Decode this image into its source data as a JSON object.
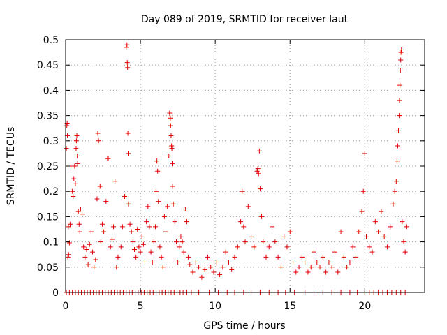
{
  "chart_data": {
    "type": "scatter",
    "title": "Day 089 of 2019, SRMTID for receiver laut",
    "xlabel": "GPS time / hours",
    "ylabel": "SRMTID / TECUs",
    "xlim": [
      0,
      24
    ],
    "ylim": [
      0,
      0.5
    ],
    "xticks": [
      0,
      5,
      10,
      15,
      20
    ],
    "xtick_labels": [
      "0",
      "5",
      "10",
      "15",
      "20"
    ],
    "yticks": [
      0,
      0.05,
      0.1,
      0.15,
      0.2,
      0.25,
      0.3,
      0.35,
      0.4,
      0.45,
      0.5
    ],
    "ytick_labels": [
      "0",
      "0.05",
      "0.1",
      "0.15",
      "0.2",
      "0.25",
      "0.3",
      "0.35",
      "0.4",
      "0.45",
      "0.5"
    ],
    "grid": true,
    "marker": "+",
    "series_color": "#e00000",
    "series": [
      {
        "name": "SRMTID",
        "baseline_hours": [
          0.05,
          0.25,
          0.45,
          0.65,
          0.85,
          1.05,
          1.25,
          1.45,
          1.65,
          1.85,
          2.05,
          2.25,
          2.45,
          2.65,
          2.85,
          3.05,
          3.25,
          3.45,
          3.65,
          3.85,
          4.05,
          4.25,
          4.45,
          4.65,
          4.85,
          5.05,
          5.25,
          5.45,
          5.65,
          5.85,
          6.05,
          6.25,
          6.45,
          6.65,
          6.85,
          7.05,
          7.25,
          7.45,
          7.65,
          7.85,
          8.1,
          8.4,
          8.9,
          9.6,
          10.2,
          10.8,
          11.3,
          11.9,
          12.4,
          13.0,
          13.6,
          14.2,
          14.7,
          15.3,
          16.0,
          16.6,
          17.2,
          17.8,
          18.4,
          19.0,
          19.5,
          20.0,
          20.3,
          20.6,
          20.9,
          21.2,
          21.5,
          21.8,
          22.1,
          22.4,
          22.7
        ],
        "points": [
          [
            0.05,
            0.285
          ],
          [
            0.08,
            0.33
          ],
          [
            0.1,
            0.335
          ],
          [
            0.12,
            0.31
          ],
          [
            0.15,
            0.07
          ],
          [
            0.18,
            0.13
          ],
          [
            0.2,
            0.075
          ],
          [
            0.25,
            0.098
          ],
          [
            0.3,
            0.135
          ],
          [
            0.35,
            0.25
          ],
          [
            0.45,
            0.2
          ],
          [
            0.5,
            0.19
          ],
          [
            0.55,
            0.225
          ],
          [
            0.6,
            0.25
          ],
          [
            0.65,
            0.215
          ],
          [
            0.7,
            0.285
          ],
          [
            0.72,
            0.3
          ],
          [
            0.75,
            0.31
          ],
          [
            0.78,
            0.27
          ],
          [
            0.8,
            0.255
          ],
          [
            0.85,
            0.16
          ],
          [
            0.9,
            0.135
          ],
          [
            0.95,
            0.12
          ],
          [
            1.0,
            0.165
          ],
          [
            1.1,
            0.155
          ],
          [
            1.2,
            0.09
          ],
          [
            1.3,
            0.07
          ],
          [
            1.4,
            0.085
          ],
          [
            1.5,
            0.055
          ],
          [
            1.6,
            0.095
          ],
          [
            1.7,
            0.12
          ],
          [
            1.8,
            0.08
          ],
          [
            1.9,
            0.05
          ],
          [
            2.0,
            0.065
          ],
          [
            2.1,
            0.185
          ],
          [
            2.15,
            0.315
          ],
          [
            2.2,
            0.3
          ],
          [
            2.3,
            0.21
          ],
          [
            2.35,
            0.1
          ],
          [
            2.45,
            0.135
          ],
          [
            2.55,
            0.12
          ],
          [
            2.7,
            0.18
          ],
          [
            2.8,
            0.265
          ],
          [
            2.85,
            0.265
          ],
          [
            3.0,
            0.09
          ],
          [
            3.1,
            0.105
          ],
          [
            3.2,
            0.13
          ],
          [
            3.3,
            0.22
          ],
          [
            3.4,
            0.05
          ],
          [
            3.5,
            0.07
          ],
          [
            3.7,
            0.09
          ],
          [
            3.8,
            0.13
          ],
          [
            3.95,
            0.19
          ],
          [
            4.05,
            0.485
          ],
          [
            4.1,
            0.49
          ],
          [
            4.12,
            0.455
          ],
          [
            4.14,
            0.445
          ],
          [
            4.16,
            0.315
          ],
          [
            4.18,
            0.275
          ],
          [
            4.2,
            0.175
          ],
          [
            4.3,
            0.135
          ],
          [
            4.4,
            0.12
          ],
          [
            4.5,
            0.1
          ],
          [
            4.6,
            0.085
          ],
          [
            4.7,
            0.07
          ],
          [
            4.8,
            0.125
          ],
          [
            4.9,
            0.09
          ],
          [
            5.0,
            0.08
          ],
          [
            5.1,
            0.11
          ],
          [
            5.2,
            0.095
          ],
          [
            5.3,
            0.06
          ],
          [
            5.4,
            0.14
          ],
          [
            5.5,
            0.17
          ],
          [
            5.6,
            0.13
          ],
          [
            5.7,
            0.08
          ],
          [
            5.8,
            0.06
          ],
          [
            5.9,
            0.1
          ],
          [
            6.0,
            0.13
          ],
          [
            6.05,
            0.2
          ],
          [
            6.1,
            0.26
          ],
          [
            6.15,
            0.24
          ],
          [
            6.2,
            0.18
          ],
          [
            6.3,
            0.09
          ],
          [
            6.4,
            0.07
          ],
          [
            6.5,
            0.05
          ],
          [
            6.6,
            0.15
          ],
          [
            6.7,
            0.12
          ],
          [
            6.8,
            0.17
          ],
          [
            6.9,
            0.27
          ],
          [
            6.95,
            0.355
          ],
          [
            7.0,
            0.345
          ],
          [
            7.02,
            0.33
          ],
          [
            7.05,
            0.31
          ],
          [
            7.08,
            0.29
          ],
          [
            7.1,
            0.285
          ],
          [
            7.12,
            0.255
          ],
          [
            7.15,
            0.21
          ],
          [
            7.2,
            0.175
          ],
          [
            7.3,
            0.14
          ],
          [
            7.4,
            0.1
          ],
          [
            7.5,
            0.06
          ],
          [
            7.6,
            0.09
          ],
          [
            7.7,
            0.11
          ],
          [
            7.8,
            0.1
          ],
          [
            7.9,
            0.08
          ],
          [
            8.0,
            0.165
          ],
          [
            8.1,
            0.14
          ],
          [
            8.2,
            0.07
          ],
          [
            8.3,
            0.055
          ],
          [
            8.5,
            0.04
          ],
          [
            8.7,
            0.06
          ],
          [
            8.9,
            0.05
          ],
          [
            9.1,
            0.03
          ],
          [
            9.3,
            0.045
          ],
          [
            9.5,
            0.07
          ],
          [
            9.7,
            0.05
          ],
          [
            9.9,
            0.04
          ],
          [
            10.1,
            0.06
          ],
          [
            10.3,
            0.035
          ],
          [
            10.5,
            0.05
          ],
          [
            10.7,
            0.08
          ],
          [
            10.9,
            0.06
          ],
          [
            11.1,
            0.045
          ],
          [
            11.3,
            0.07
          ],
          [
            11.5,
            0.09
          ],
          [
            11.7,
            0.14
          ],
          [
            11.8,
            0.2
          ],
          [
            11.9,
            0.13
          ],
          [
            12.0,
            0.1
          ],
          [
            12.2,
            0.17
          ],
          [
            12.4,
            0.11
          ],
          [
            12.6,
            0.09
          ],
          [
            12.8,
            0.24
          ],
          [
            12.85,
            0.245
          ],
          [
            12.9,
            0.235
          ],
          [
            12.95,
            0.28
          ],
          [
            13.0,
            0.205
          ],
          [
            13.1,
            0.15
          ],
          [
            13.2,
            0.1
          ],
          [
            13.4,
            0.07
          ],
          [
            13.6,
            0.09
          ],
          [
            13.8,
            0.13
          ],
          [
            14.0,
            0.1
          ],
          [
            14.2,
            0.07
          ],
          [
            14.4,
            0.05
          ],
          [
            14.6,
            0.11
          ],
          [
            14.8,
            0.09
          ],
          [
            15.0,
            0.12
          ],
          [
            15.2,
            0.06
          ],
          [
            15.4,
            0.04
          ],
          [
            15.6,
            0.05
          ],
          [
            15.8,
            0.07
          ],
          [
            16.0,
            0.06
          ],
          [
            16.2,
            0.04
          ],
          [
            16.4,
            0.05
          ],
          [
            16.6,
            0.08
          ],
          [
            16.8,
            0.06
          ],
          [
            17.0,
            0.05
          ],
          [
            17.2,
            0.07
          ],
          [
            17.4,
            0.04
          ],
          [
            17.6,
            0.06
          ],
          [
            17.8,
            0.05
          ],
          [
            18.0,
            0.08
          ],
          [
            18.2,
            0.04
          ],
          [
            18.4,
            0.12
          ],
          [
            18.6,
            0.07
          ],
          [
            18.8,
            0.05
          ],
          [
            19.0,
            0.06
          ],
          [
            19.2,
            0.09
          ],
          [
            19.4,
            0.07
          ],
          [
            19.6,
            0.12
          ],
          [
            19.8,
            0.16
          ],
          [
            19.9,
            0.2
          ],
          [
            20.0,
            0.275
          ],
          [
            20.1,
            0.11
          ],
          [
            20.3,
            0.09
          ],
          [
            20.5,
            0.08
          ],
          [
            20.7,
            0.14
          ],
          [
            20.9,
            0.12
          ],
          [
            21.1,
            0.16
          ],
          [
            21.3,
            0.11
          ],
          [
            21.5,
            0.09
          ],
          [
            21.7,
            0.13
          ],
          [
            21.9,
            0.175
          ],
          [
            22.0,
            0.2
          ],
          [
            22.1,
            0.22
          ],
          [
            22.15,
            0.26
          ],
          [
            22.2,
            0.29
          ],
          [
            22.25,
            0.32
          ],
          [
            22.3,
            0.35
          ],
          [
            22.32,
            0.38
          ],
          [
            22.35,
            0.41
          ],
          [
            22.38,
            0.44
          ],
          [
            22.4,
            0.46
          ],
          [
            22.42,
            0.475
          ],
          [
            22.45,
            0.48
          ],
          [
            22.5,
            0.14
          ],
          [
            22.6,
            0.1
          ],
          [
            22.7,
            0.08
          ],
          [
            22.8,
            0.13
          ]
        ]
      }
    ]
  }
}
